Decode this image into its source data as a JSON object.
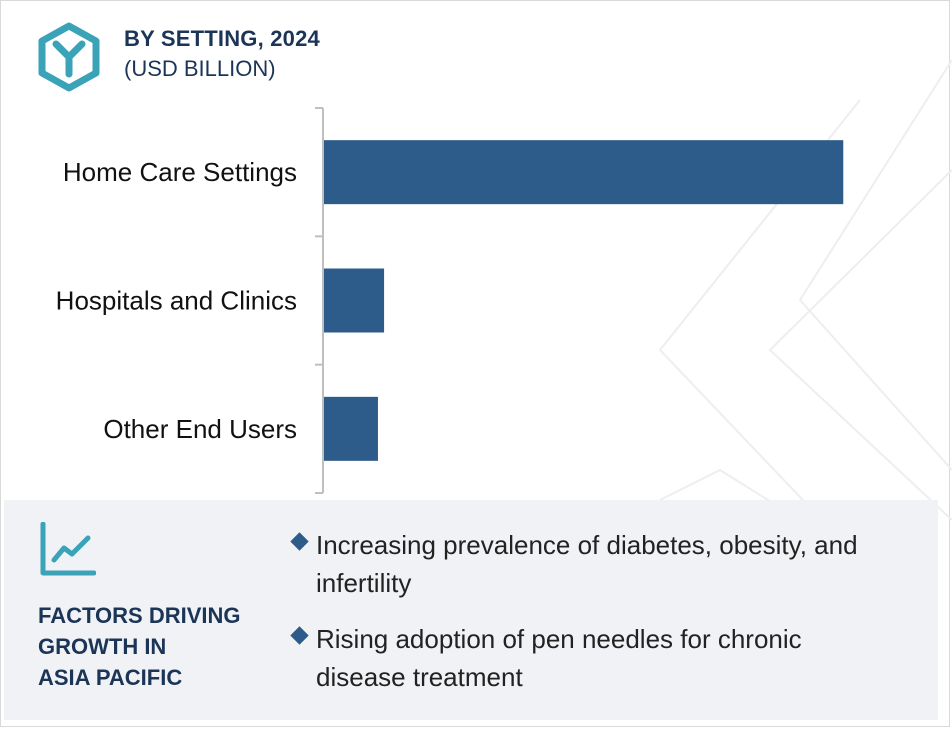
{
  "header": {
    "title": "BY SETTING, 2024",
    "subtitle": "(USD BILLION)",
    "logo_icon": "hexagon-y-logo-icon"
  },
  "chart_data": {
    "type": "bar",
    "orientation": "horizontal",
    "title": "BY SETTING, 2024",
    "subtitle": "(USD BILLION)",
    "categories": [
      "Home Care Settings",
      "Hospitals and Clinics",
      "Other End Users"
    ],
    "values": [
      5.1,
      0.59,
      0.53
    ],
    "xlim": [
      0,
      5.5
    ],
    "xlabel": "",
    "ylabel": "",
    "grid": false,
    "bar_color": "#2e5c8a"
  },
  "factors": {
    "icon": "line-chart-icon",
    "title_lines": [
      "FACTORS DRIVING",
      "GROWTH IN",
      "ASIA PACIFIC"
    ],
    "bullets": [
      "Increasing prevalence of diabetes, obesity, and infertility",
      "Rising adoption of pen needles for chronic disease treatment"
    ]
  },
  "colors": {
    "accent": "#3aa3b8",
    "navy": "#1c3557",
    "bar": "#2e5c8a",
    "panel": "#f0f2f5"
  }
}
